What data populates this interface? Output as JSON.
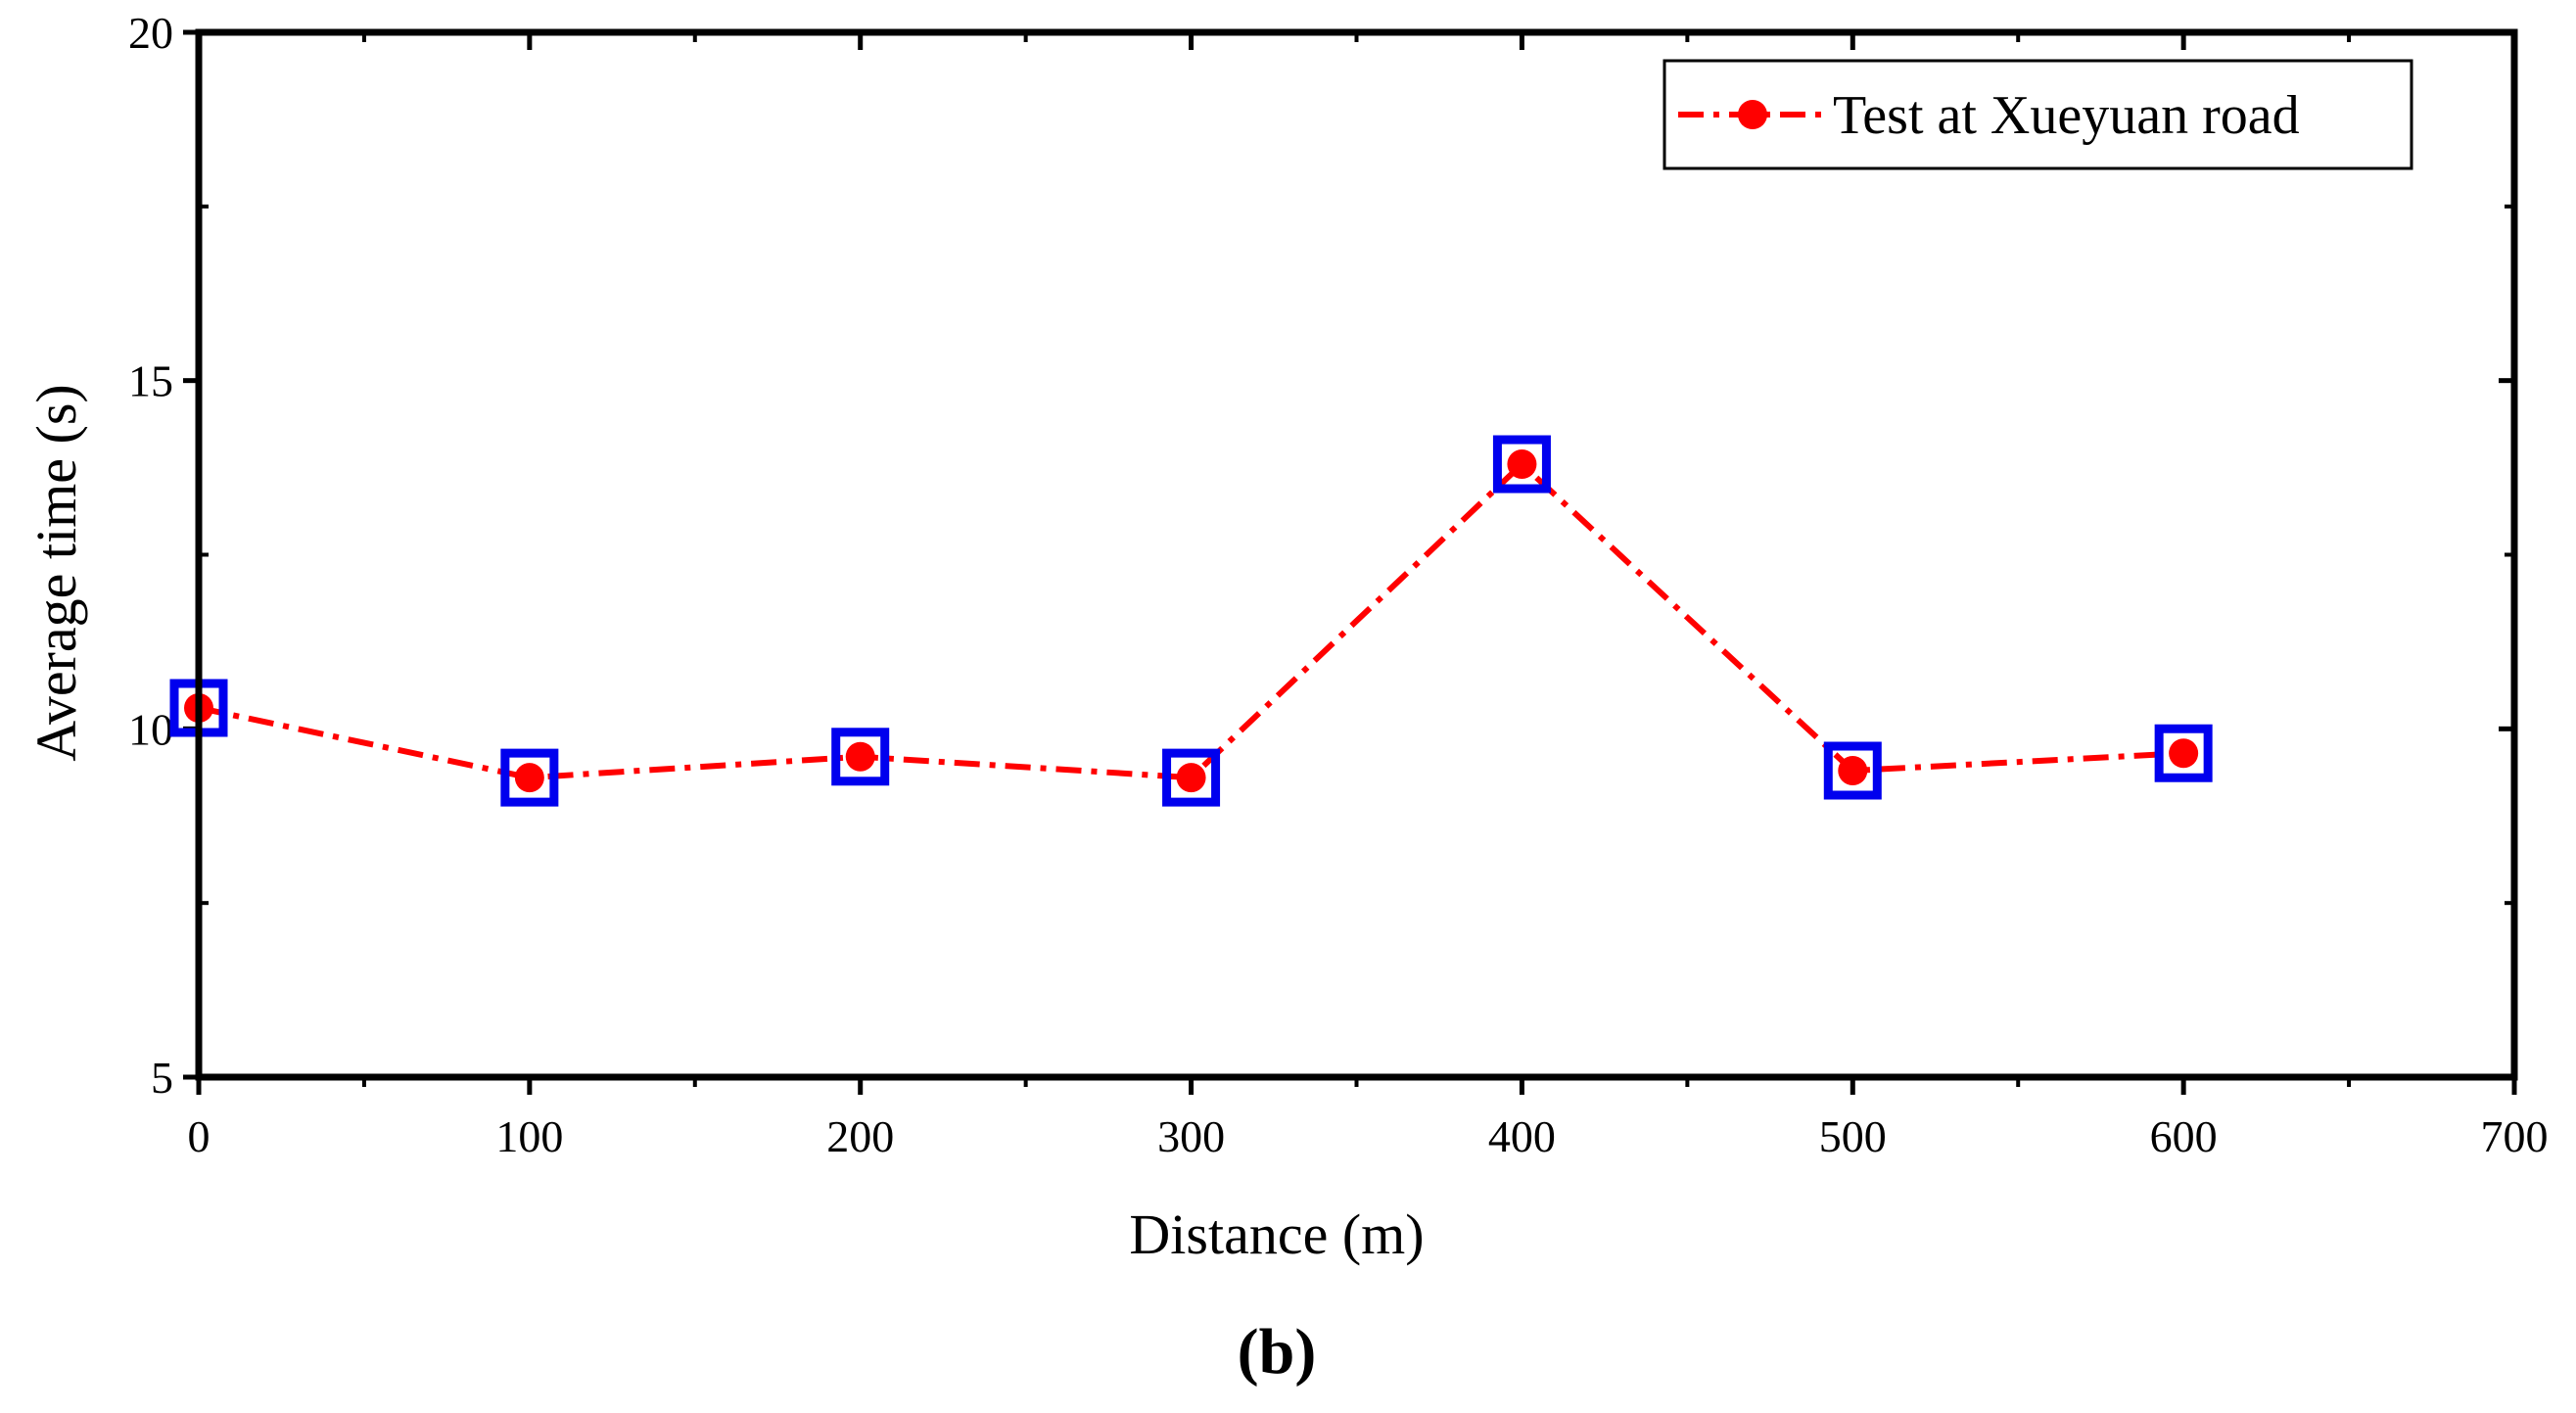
{
  "chart_data": {
    "type": "line",
    "title": "",
    "xlabel": "Distance (m)",
    "ylabel": "Average time (s)",
    "panel_label": "(b)",
    "xlim": [
      0,
      700
    ],
    "ylim": [
      5,
      20
    ],
    "x_ticks": [
      0,
      100,
      200,
      300,
      400,
      500,
      600,
      700
    ],
    "y_ticks": [
      5,
      10,
      15,
      20
    ],
    "grid": false,
    "legend_position": "top-right",
    "series": [
      {
        "name": "Test at Xueyuan road",
        "color": "#ff0000",
        "line_style": "dash-dot",
        "marker": "circle",
        "x": [
          0,
          100,
          200,
          300,
          400,
          500,
          600
        ],
        "values": [
          10.3,
          9.3,
          9.6,
          9.3,
          13.8,
          9.4,
          9.65
        ]
      }
    ],
    "highlight_markers": {
      "shape": "square",
      "color": "#0000ee",
      "x": [
        0,
        100,
        200,
        300,
        400,
        500,
        600
      ]
    }
  }
}
